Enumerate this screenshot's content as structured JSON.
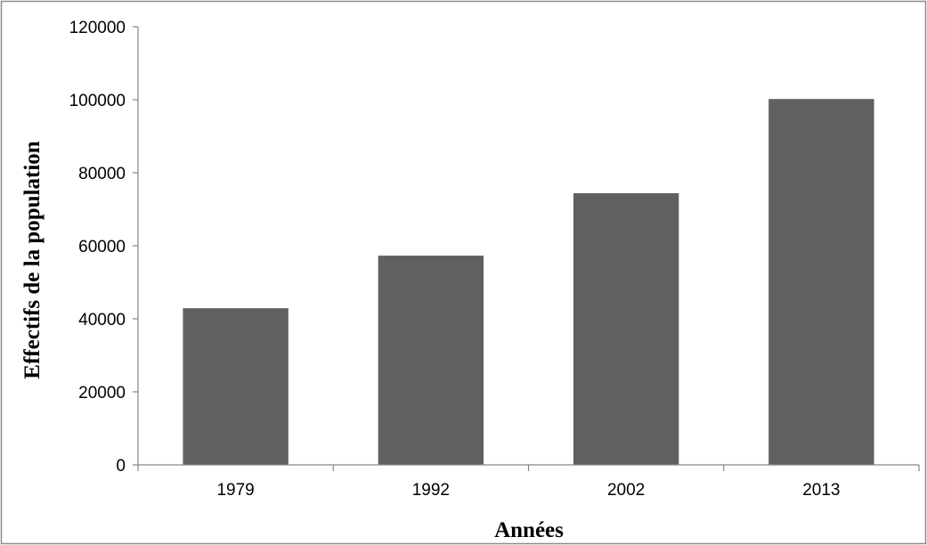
{
  "chart_data": {
    "type": "bar",
    "categories": [
      "1979",
      "1992",
      "2002",
      "2013"
    ],
    "values": [
      42900,
      57300,
      74400,
      100200
    ],
    "title": "",
    "xlabel": "Années",
    "ylabel": "Effectifs de la population",
    "ylim": [
      0,
      120000
    ],
    "yticks": [
      "0",
      "20000",
      "40000",
      "60000",
      "80000",
      "100000",
      "120000"
    ],
    "grid": false,
    "legend": "none",
    "bar_color": "#606060",
    "axis_color": "#868686",
    "frame_color": "#8c8c8c"
  }
}
